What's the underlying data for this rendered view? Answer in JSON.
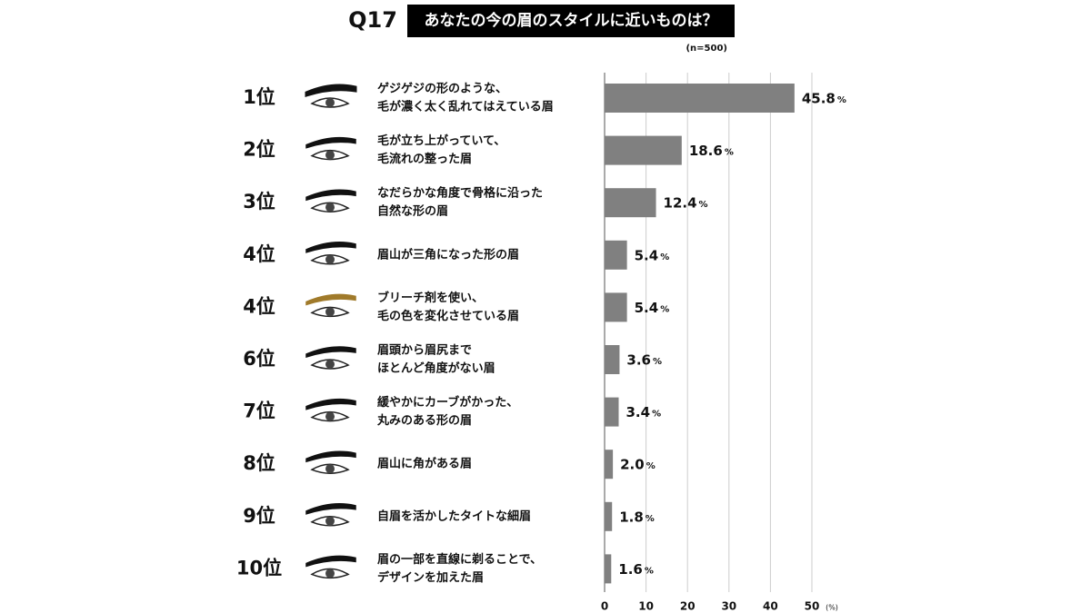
{
  "chart_data": {
    "type": "bar",
    "question": "Q17",
    "title": "あなたの今の眉のスタイルに近いものは？",
    "note": "(n=500)",
    "ranks": [
      "1位",
      "2位",
      "3位",
      "4位",
      "4位",
      "6位",
      "7位",
      "8位",
      "9位",
      "10位"
    ],
    "categories": [
      [
        "ゲジゲジの形のような、",
        "毛が濃く太く乱れてはえている眉"
      ],
      [
        "毛が立ち上がっていて、",
        "毛流れの整った眉"
      ],
      [
        "なだらかな角度で骨格に沿った",
        "自然な形の眉"
      ],
      [
        "眉山が三角になった形の眉"
      ],
      [
        "ブリーチ剤を使い、",
        "毛の色を変化させている眉"
      ],
      [
        "眉頭から眉尻まで",
        "ほとんど角度がない眉"
      ],
      [
        "緩やかにカーブがかった、",
        "丸みのある形の眉"
      ],
      [
        "眉山に角がある眉"
      ],
      [
        "自眉を活かしたタイトな細眉"
      ],
      [
        "眉の一部を直線に剃ることで、",
        "デザインを加えた眉"
      ]
    ],
    "values": [
      45.8,
      18.6,
      12.4,
      5.4,
      5.4,
      3.6,
      3.4,
      2.0,
      1.8,
      1.6
    ],
    "value_labels": [
      "45.8",
      "18.6",
      "12.4",
      "5.4",
      "5.4",
      "3.6",
      "3.4",
      "2.0",
      "1.8",
      "1.6"
    ],
    "value_unit": "%",
    "color": "#808080",
    "xlim": [
      0,
      50
    ],
    "xticks": [
      0,
      10,
      20,
      30,
      40,
      50
    ],
    "x_unit": "(%)",
    "grid": true
  }
}
